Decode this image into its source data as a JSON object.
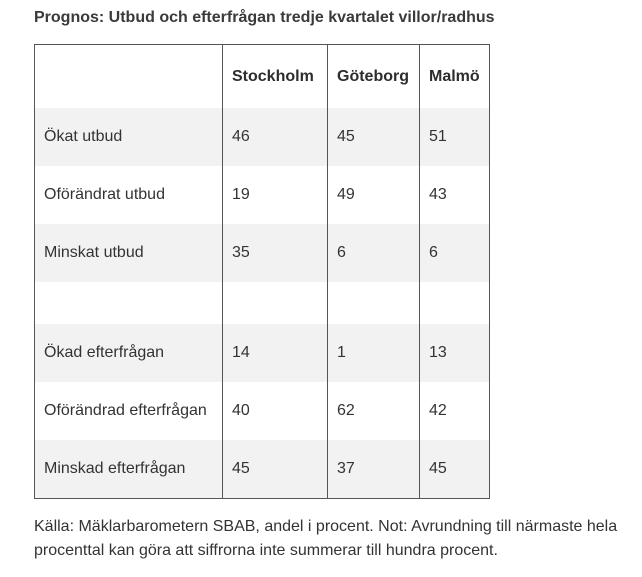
{
  "title": "Prognos: Utbud och efterfrågan tredje kvartalet villor/radhus",
  "table": {
    "headers": [
      "",
      "Stockholm",
      "Göteborg",
      "Malmö"
    ],
    "rows": [
      {
        "label": "Ökat utbud",
        "values": [
          "46",
          "45",
          "51"
        ]
      },
      {
        "label": "Oförändrat utbud",
        "values": [
          "19",
          "49",
          "43"
        ]
      },
      {
        "label": "Minskat utbud",
        "values": [
          "35",
          "6",
          "6"
        ]
      },
      {
        "label": "",
        "values": [
          "",
          "",
          ""
        ]
      },
      {
        "label": "Ökad efterfrågan",
        "values": [
          "14",
          "1",
          "13"
        ]
      },
      {
        "label": "Oförändrad efterfrågan",
        "values": [
          "40",
          "62",
          "42"
        ]
      },
      {
        "label": "Minskad efterfrågan",
        "values": [
          "45",
          "37",
          "45"
        ]
      }
    ]
  },
  "source": "Källa: Mäklarbarometern SBAB, andel i procent. Not: Avrundning till närmaste hela procenttal kan göra att siffrorna inte summerar till hundra procent."
}
